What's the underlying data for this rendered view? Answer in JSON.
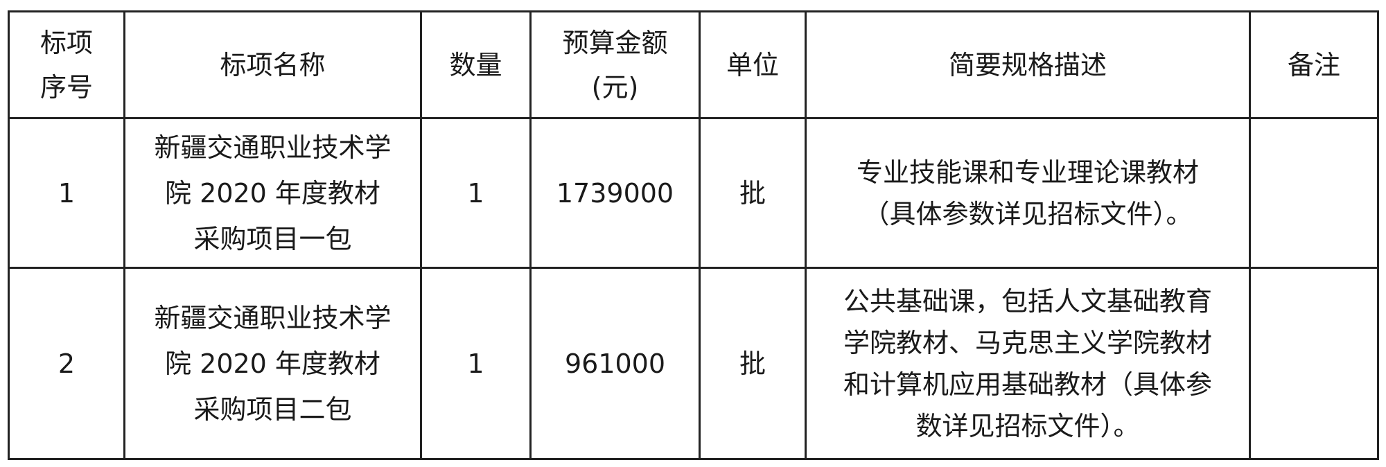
{
  "headers": [
    "标项序号",
    "标项名称",
    "数量",
    "预算金额(元)",
    "单位",
    "简要规格描述",
    "备注"
  ],
  "header_lines": {
    "index": [
      "标项",
      "序号"
    ],
    "budget": [
      "预算金额",
      "(元)"
    ]
  },
  "rows": [
    {
      "index": "1",
      "name": "新疆交通职业技术学院 2020 年度教材采购项目一包",
      "quantity": "1",
      "budget": "1739000",
      "unit": "批",
      "description": "专业技能课和专业理论课教材（具体参数详见招标文件）。",
      "remark": ""
    },
    {
      "index": "2",
      "name": "新疆交通职业技术学院 2020 年度教材采购项目二包",
      "quantity": "1",
      "budget": "961000",
      "unit": "批",
      "description": "公共基础课，包括人文基础教育学院教材、马克思主义学院教材和计算机应用基础教材（具体参数详见招标文件）。",
      "remark": ""
    }
  ]
}
